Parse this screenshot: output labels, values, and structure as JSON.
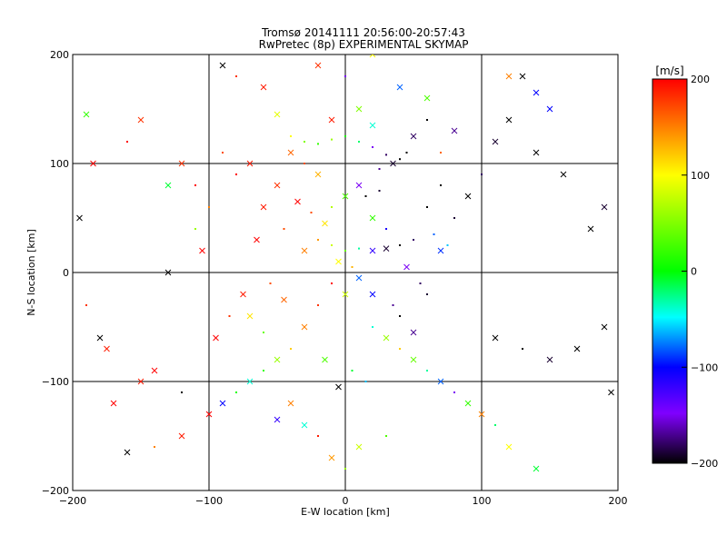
{
  "chart_data": [
    {
      "type": "scatter",
      "title": "Tromsø 20141111 20:56:00-20:57:43",
      "subtitle": "RwPretec (8p) EXPERIMENTAL SKYMAP",
      "xlabel": "E-W location [km]",
      "ylabel": "N-S location [km]",
      "xlim": [
        -200,
        200
      ],
      "ylim": [
        -200,
        200
      ],
      "xticks": [
        "−200",
        "−100",
        "0",
        "100",
        "200"
      ],
      "xtick_values": [
        -200,
        -100,
        0,
        100,
        200
      ],
      "yticks": [
        "200",
        "100",
        "0",
        "−100",
        "−200"
      ],
      "ytick_values": [
        200,
        100,
        0,
        -100,
        -200
      ],
      "grid": true,
      "marker_types": [
        "dot",
        "x"
      ],
      "series": [
        {
          "values": [
            [
              -40,
              125,
              100,
              "dot"
            ],
            [
              -30,
              120,
              50,
              "dot"
            ],
            [
              -20,
              118,
              20,
              "dot"
            ],
            [
              -10,
              122,
              60,
              "dot"
            ],
            [
              0,
              125,
              10,
              "dot"
            ],
            [
              10,
              120,
              -20,
              "dot"
            ],
            [
              20,
              115,
              -150,
              "dot"
            ],
            [
              30,
              108,
              -180,
              "dot"
            ],
            [
              40,
              104,
              -200,
              "dot"
            ],
            [
              35,
              100,
              -190,
              "x"
            ],
            [
              45,
              110,
              -200,
              "dot"
            ],
            [
              25,
              95,
              -170,
              "dot"
            ],
            [
              -50,
              80,
              180,
              "x"
            ],
            [
              -60,
              60,
              190,
              "x"
            ],
            [
              -45,
              40,
              170,
              "dot"
            ],
            [
              -30,
              20,
              150,
              "x"
            ],
            [
              -20,
              30,
              140,
              "dot"
            ],
            [
              -10,
              25,
              80,
              "dot"
            ],
            [
              0,
              20,
              40,
              "dot"
            ],
            [
              10,
              22,
              -30,
              "dot"
            ],
            [
              20,
              20,
              -120,
              "x"
            ],
            [
              30,
              22,
              -190,
              "x"
            ],
            [
              40,
              25,
              -200,
              "dot"
            ],
            [
              50,
              30,
              -180,
              "dot"
            ],
            [
              60,
              60,
              -200,
              "dot"
            ],
            [
              70,
              80,
              -200,
              "dot"
            ],
            [
              80,
              50,
              -190,
              "dot"
            ],
            [
              -70,
              100,
              190,
              "x"
            ],
            [
              -80,
              90,
              200,
              "dot"
            ],
            [
              -90,
              110,
              170,
              "dot"
            ],
            [
              -100,
              60,
              150,
              "dot"
            ],
            [
              -110,
              80,
              200,
              "dot"
            ],
            [
              -120,
              100,
              180,
              "x"
            ],
            [
              -150,
              140,
              180,
              "x"
            ],
            [
              -160,
              120,
              200,
              "dot"
            ],
            [
              -190,
              145,
              20,
              "x"
            ],
            [
              -195,
              50,
              -200,
              "x"
            ],
            [
              -185,
              100,
              200,
              "x"
            ],
            [
              -130,
              0,
              -200,
              "x"
            ],
            [
              -10,
              -10,
              200,
              "dot"
            ],
            [
              0,
              -20,
              80,
              "x"
            ],
            [
              10,
              -5,
              -80,
              "x"
            ],
            [
              20,
              -20,
              -100,
              "x"
            ],
            [
              -20,
              -30,
              180,
              "dot"
            ],
            [
              -30,
              -50,
              150,
              "x"
            ],
            [
              -40,
              -70,
              120,
              "dot"
            ],
            [
              -50,
              -80,
              60,
              "x"
            ],
            [
              -60,
              -90,
              20,
              "dot"
            ],
            [
              -70,
              -100,
              -40,
              "x"
            ],
            [
              -80,
              -110,
              10,
              "dot"
            ],
            [
              -90,
              -120,
              -100,
              "x"
            ],
            [
              -100,
              -130,
              200,
              "x"
            ],
            [
              -120,
              -150,
              190,
              "x"
            ],
            [
              -140,
              -160,
              150,
              "dot"
            ],
            [
              -160,
              -165,
              -200,
              "x"
            ],
            [
              -170,
              -120,
              200,
              "x"
            ],
            [
              -175,
              -70,
              190,
              "x"
            ],
            [
              -180,
              -60,
              -200,
              "x"
            ],
            [
              -190,
              -30,
              180,
              "dot"
            ],
            [
              20,
              -50,
              -40,
              "dot"
            ],
            [
              30,
              -60,
              60,
              "x"
            ],
            [
              40,
              -70,
              120,
              "dot"
            ],
            [
              50,
              -80,
              40,
              "x"
            ],
            [
              60,
              -90,
              -30,
              "dot"
            ],
            [
              70,
              -100,
              -80,
              "x"
            ],
            [
              80,
              -110,
              -150,
              "dot"
            ],
            [
              90,
              -120,
              20,
              "x"
            ],
            [
              100,
              -130,
              150,
              "x"
            ],
            [
              110,
              -140,
              -20,
              "dot"
            ],
            [
              120,
              -160,
              100,
              "x"
            ],
            [
              140,
              -180,
              -10,
              "x"
            ],
            [
              110,
              -60,
              -200,
              "x"
            ],
            [
              130,
              -70,
              -200,
              "dot"
            ],
            [
              150,
              -80,
              -190,
              "x"
            ],
            [
              170,
              -70,
              -200,
              "x"
            ],
            [
              190,
              -50,
              -200,
              "x"
            ],
            [
              195,
              -110,
              -200,
              "x"
            ],
            [
              180,
              40,
              -200,
              "x"
            ],
            [
              190,
              60,
              -190,
              "x"
            ],
            [
              160,
              90,
              -200,
              "x"
            ],
            [
              140,
              110,
              -200,
              "x"
            ],
            [
              120,
              140,
              -200,
              "x"
            ],
            [
              150,
              150,
              -100,
              "x"
            ],
            [
              100,
              90,
              -180,
              "dot"
            ],
            [
              90,
              70,
              -200,
              "x"
            ],
            [
              110,
              120,
              -190,
              "x"
            ],
            [
              130,
              180,
              -200,
              "x"
            ],
            [
              140,
              165,
              -100,
              "x"
            ],
            [
              120,
              180,
              150,
              "x"
            ],
            [
              0,
              180,
              -150,
              "dot"
            ],
            [
              -20,
              190,
              180,
              "x"
            ],
            [
              20,
              200,
              100,
              "x"
            ],
            [
              40,
              170,
              -80,
              "x"
            ],
            [
              60,
              160,
              30,
              "x"
            ],
            [
              -60,
              170,
              190,
              "x"
            ],
            [
              -90,
              190,
              -200,
              "x"
            ],
            [
              -80,
              180,
              180,
              "dot"
            ],
            [
              70,
              110,
              160,
              "dot"
            ],
            [
              70,
              20,
              -90,
              "x"
            ],
            [
              75,
              25,
              -60,
              "dot"
            ],
            [
              65,
              35,
              -80,
              "dot"
            ],
            [
              -5,
              10,
              100,
              "x"
            ],
            [
              5,
              5,
              130,
              "dot"
            ],
            [
              -15,
              45,
              110,
              "x"
            ],
            [
              -25,
              55,
              170,
              "dot"
            ],
            [
              -35,
              65,
              200,
              "x"
            ],
            [
              15,
              70,
              -200,
              "dot"
            ],
            [
              25,
              75,
              -190,
              "dot"
            ],
            [
              -65,
              30,
              200,
              "x"
            ],
            [
              -75,
              -20,
              190,
              "x"
            ],
            [
              -85,
              -40,
              180,
              "dot"
            ],
            [
              -95,
              -60,
              200,
              "x"
            ],
            [
              -55,
              -10,
              170,
              "dot"
            ],
            [
              45,
              5,
              -150,
              "x"
            ],
            [
              55,
              -10,
              -180,
              "dot"
            ],
            [
              35,
              -30,
              -170,
              "dot"
            ],
            [
              -15,
              -80,
              30,
              "x"
            ],
            [
              5,
              -90,
              -10,
              "dot"
            ],
            [
              -5,
              -105,
              -200,
              "x"
            ],
            [
              15,
              -100,
              -60,
              "dot"
            ],
            [
              -40,
              -120,
              150,
              "x"
            ],
            [
              -20,
              -150,
              190,
              "dot"
            ],
            [
              -30,
              -140,
              -40,
              "x"
            ],
            [
              -50,
              -135,
              -120,
              "x"
            ],
            [
              30,
              -150,
              30,
              "dot"
            ],
            [
              10,
              -160,
              80,
              "x"
            ],
            [
              -10,
              -170,
              140,
              "x"
            ],
            [
              0,
              -180,
              60,
              "dot"
            ],
            [
              -130,
              80,
              -10,
              "x"
            ],
            [
              -110,
              40,
              60,
              "dot"
            ],
            [
              -105,
              20,
              200,
              "x"
            ],
            [
              -140,
              -90,
              200,
              "x"
            ],
            [
              -120,
              -110,
              -200,
              "dot"
            ],
            [
              -150,
              -100,
              190,
              "x"
            ],
            [
              20,
              50,
              20,
              "x"
            ],
            [
              30,
              40,
              -110,
              "dot"
            ],
            [
              -10,
              60,
              70,
              "dot"
            ],
            [
              0,
              70,
              30,
              "x"
            ],
            [
              10,
              80,
              -150,
              "x"
            ],
            [
              -20,
              90,
              130,
              "x"
            ],
            [
              -30,
              100,
              170,
              "dot"
            ],
            [
              -40,
              110,
              160,
              "x"
            ],
            [
              -10,
              140,
              190,
              "x"
            ],
            [
              10,
              150,
              50,
              "x"
            ],
            [
              20,
              135,
              -40,
              "x"
            ],
            [
              -50,
              145,
              90,
              "x"
            ],
            [
              50,
              125,
              -180,
              "x"
            ],
            [
              60,
              140,
              -200,
              "dot"
            ],
            [
              80,
              130,
              -170,
              "x"
            ],
            [
              -70,
              -40,
              110,
              "x"
            ],
            [
              -60,
              -55,
              40,
              "dot"
            ],
            [
              -45,
              -25,
              160,
              "x"
            ],
            [
              40,
              -40,
              -200,
              "dot"
            ],
            [
              50,
              -55,
              -170,
              "x"
            ],
            [
              60,
              -20,
              -190,
              "dot"
            ]
          ]
        }
      ]
    },
    {
      "type": "heatmap",
      "title": "[m/s]",
      "ylim": [
        -200,
        200
      ],
      "ticks": [
        "200",
        "100",
        "0",
        "−100",
        "−200"
      ],
      "tick_values": [
        200,
        100,
        0,
        -100,
        -200
      ],
      "colormap": [
        "#ff0000",
        "#ffff00",
        "#00ff00",
        "#00ffff",
        "#0000ff",
        "#8000ff",
        "#000000"
      ]
    }
  ]
}
